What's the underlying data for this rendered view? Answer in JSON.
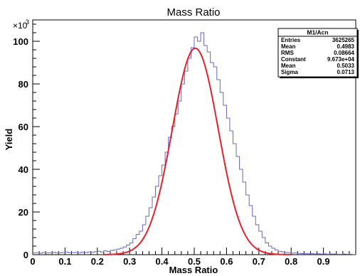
{
  "chart_data": {
    "type": "histogram",
    "title": "Mass Ratio",
    "xlabel": "Mass Ratio",
    "ylabel": "Yield",
    "y_multiplier_label": "×10",
    "y_multiplier_exp": "3",
    "xlim": [
      0,
      1
    ],
    "ylim": [
      0,
      110
    ],
    "x_ticks": [
      0,
      0.1,
      0.2,
      0.3,
      0.4,
      0.5,
      0.6,
      0.7,
      0.8,
      0.9,
      1
    ],
    "x_tick_labels": [
      "0",
      "0.1",
      "0.2",
      "0.3",
      "0.4",
      "0.5",
      "0.6",
      "0.7",
      "0.8",
      "0.9",
      ""
    ],
    "y_ticks": [
      0,
      20,
      40,
      60,
      80,
      100
    ],
    "y_tick_labels": [
      "0",
      "20",
      "40",
      "60",
      "80",
      "100"
    ],
    "histogram_color": "#6666cc",
    "fit_color": "#e8202a",
    "histogram": {
      "bin_width": 0.01,
      "x_start": 0,
      "values": [
        0.8,
        0.9,
        0.7,
        1.0,
        0.8,
        0.9,
        1.1,
        0.8,
        0.9,
        1.0,
        1.2,
        0.9,
        1.0,
        1.1,
        0.9,
        1.2,
        1.0,
        1.3,
        1.1,
        1.4,
        1.6,
        1.2,
        1.8,
        1.5,
        2.0,
        2.2,
        2.6,
        3.0,
        3.6,
        4.5,
        5.5,
        7.5,
        9.5,
        11,
        14,
        18,
        22,
        27,
        32,
        37,
        42,
        48,
        55,
        60,
        66,
        72,
        80,
        86,
        92,
        97,
        102,
        100,
        104,
        98,
        95,
        90,
        88,
        82,
        76,
        70,
        64,
        58,
        52,
        46,
        40,
        34,
        28,
        23,
        18,
        14,
        11,
        8,
        5.5,
        4,
        3,
        2.2,
        1.6,
        1.3,
        1.0,
        0.9,
        0.7,
        0.8,
        0.6,
        0.5,
        0.6,
        0.4,
        0.5,
        0.3,
        0.4,
        0.3,
        0.4,
        0.2,
        0.3,
        0.3,
        0.2,
        0.2,
        0.3,
        0.2,
        0.2,
        0.1
      ]
    },
    "fit": {
      "function": "gaus",
      "constant": 96.73,
      "mean": 0.5033,
      "sigma": 0.0713
    },
    "stats_box": {
      "title": "M1/Acn",
      "rows": [
        {
          "label": "Entries",
          "value": "3625265"
        },
        {
          "label": "Mean",
          "value": "0.4983"
        },
        {
          "label": "RMS",
          "value": "0.08664"
        },
        {
          "label": "Constant",
          "value": "9.673e+04"
        },
        {
          "label": "Mean",
          "value": "0.5033"
        },
        {
          "label": "Sigma",
          "value": "0.0713"
        }
      ]
    }
  }
}
